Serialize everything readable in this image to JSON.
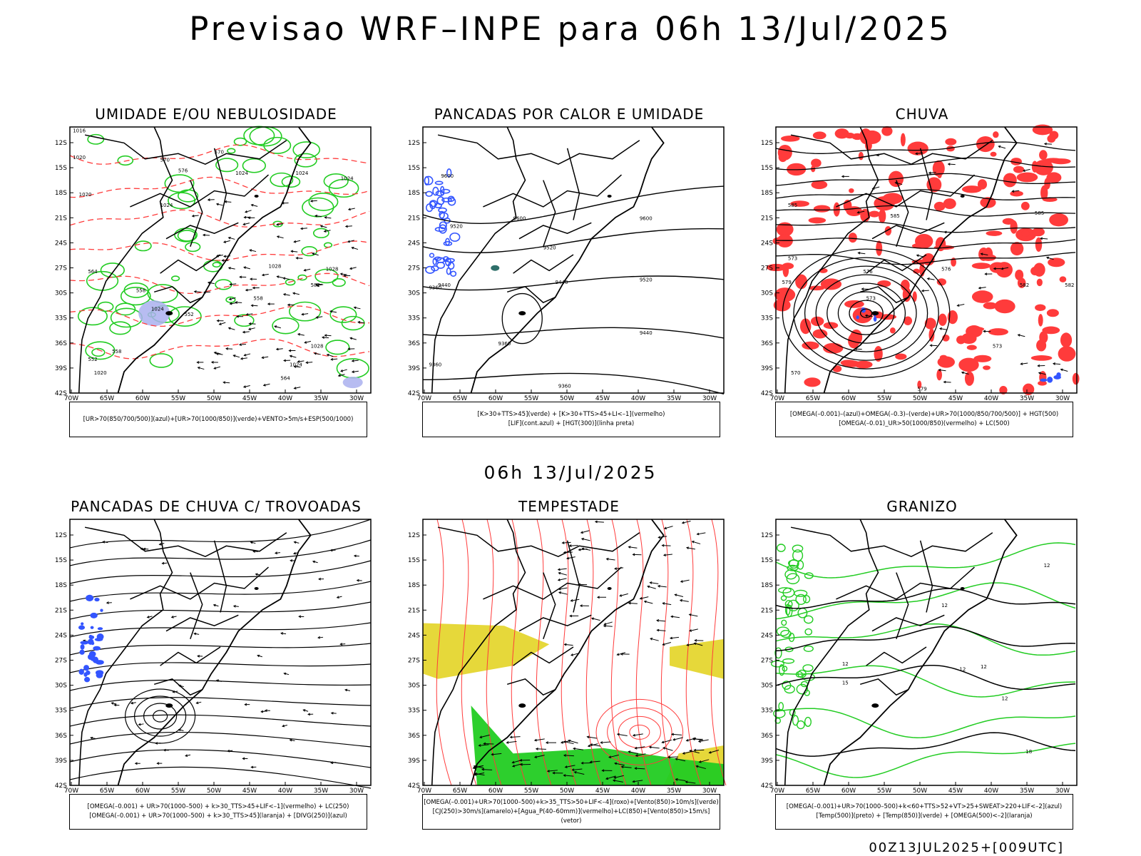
{
  "title": "Previsao WRF–INPE  para 06h 13/Jul/2025",
  "mid_title": "06h 13/Jul/2025",
  "footer": "00Z13JUL2025+[009UTC]",
  "lat_ticks": [
    "12S",
    "15S",
    "18S",
    "21S",
    "24S",
    "27S",
    "30S",
    "33S",
    "36S",
    "39S",
    "42S"
  ],
  "lon_ticks": [
    "70W",
    "65W",
    "60W",
    "55W",
    "50W",
    "45W",
    "40W",
    "35W",
    "30W"
  ],
  "colors": {
    "blue": "#3355ff",
    "green": "#22cc22",
    "red": "#ff3b3b",
    "yellow": "#e6d83a",
    "lavender": "#aab0ee",
    "teal": "#2f6f6a",
    "black": "#000000"
  },
  "panels": [
    {
      "title": "UMIDADE E/OU NEBULOSIDADE",
      "legend": [
        "[UR>70(850/700/500)](azul)+[UR>70(1000/850)](verde)+VENTO>5m/s+ESP(500/1000)"
      ],
      "contour_labels": [
        "1016",
        "1020",
        "1024",
        "1020",
        "1024",
        "1024",
        "1028",
        "1028",
        "1024",
        "1024",
        "1028",
        "1020",
        "1024",
        "570",
        "570",
        "576",
        "564",
        "558",
        "552",
        "558",
        "582",
        "558",
        "564",
        "552"
      ]
    },
    {
      "title": "PANCADAS POR CALOR E UMIDADE",
      "legend": [
        "[K>30+TTS>45](verde) + [K>30+TTS>45+LI<–1](vermelho)",
        "[LIF](cont.azul) + [HGT(300)](linha preta)"
      ],
      "contour_labels": [
        "9600",
        "9600",
        "9600",
        "9520",
        "9520",
        "9520",
        "9440",
        "9440",
        "9440",
        "9360",
        "9360",
        "9360",
        "9360"
      ]
    },
    {
      "title": "CHUVA",
      "legend": [
        "[OMEGA(–0.001)–(azul)+OMEGA(–0.3)–(verde)+UR>70(1000/850/700/500)] + HGT(500)",
        "[OMEGA(–0.01)_UR>50(1000/850)(vermelho) + LC(500)"
      ],
      "contour_labels": [
        "585",
        "585",
        "585",
        "582",
        "579",
        "576",
        "573",
        "576",
        "573",
        "570",
        "579",
        "582",
        "573"
      ]
    },
    {
      "title": "PANCADAS DE CHUVA C/ TROVOADAS",
      "legend": [
        "[OMEGA(–0.001) + UR>70(1000–500) + k>30_TTS>45+LIF<–1](vermelho) + LC(250)",
        "[OMEGA(–0.001) + UR>70(1000–500) + k>30_TTS>45](laranja) + [DIVG(250)](azul)"
      ],
      "contour_labels": []
    },
    {
      "title": "TEMPESTADE",
      "legend": [
        "[OMEGA(–0.001)+UR>70(1000–500)+k>35_TTS>50+LIF<–4](roxo)+[Vento(850)>10m/s](verde)",
        "[CJ(250)>30m/s](amarelo)+[Agua_P(40–60mm)](vermelho)+LC(850)+[Vento(850)>15m/s](vetor)"
      ],
      "contour_labels": []
    },
    {
      "title": "GRANIZO",
      "legend": [
        "[OMEGA(–0.001)+UR>70(1000–500)+k<60+TTS>52+VT>25+SWEAT>220+LIF<–2](azul)",
        "[Temp(500)](preto) + [Temp(850)](verde) + [OMEGA(500)<–2](laranja)"
      ],
      "contour_labels": [
        "12",
        "12",
        "12",
        "12",
        "15",
        "18",
        "12",
        "12"
      ]
    }
  ]
}
